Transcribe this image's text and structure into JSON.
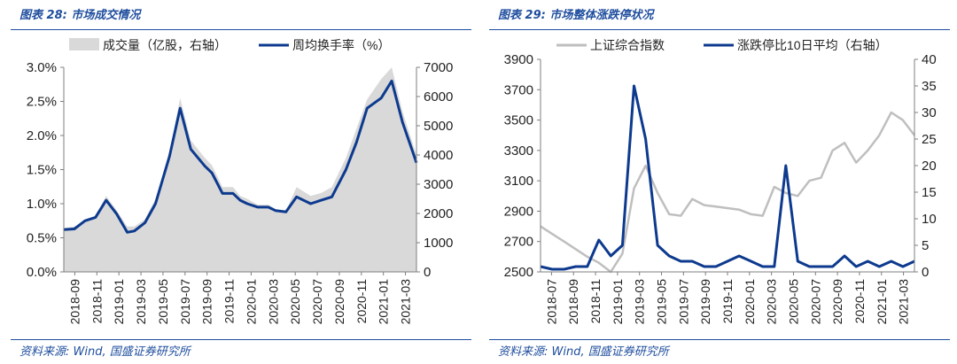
{
  "figures": [
    {
      "title": "图表 28:  市场成交情况",
      "source": "资料来源:  Wind,  国盛证券研究所"
    },
    {
      "title": "图表 29:  市场整体涨跌停状况",
      "source": "资料来源:  Wind,  国盛证券研究所"
    }
  ],
  "chart_data": [
    {
      "type": "area+line",
      "title": "市场成交情况",
      "x_tick_labels": [
        "2018-09",
        "2018-11",
        "2019-01",
        "2019-03",
        "2019-05",
        "2019-07",
        "2019-09",
        "2019-11",
        "2020-01",
        "2020-03",
        "2020-05",
        "2020-07",
        "2020-09",
        "2020-11",
        "2021-01",
        "2021-03"
      ],
      "x_range": [
        "2018-09",
        "2021-04"
      ],
      "y_left": {
        "range": [
          0,
          3.0
        ],
        "ticks": [
          "0.0%",
          "0.5%",
          "1.0%",
          "1.5%",
          "2.0%",
          "2.5%",
          "3.0%"
        ]
      },
      "y_right": {
        "range": [
          0,
          7000
        ],
        "ticks": [
          "0",
          "1000",
          "2000",
          "3000",
          "4000",
          "5000",
          "6000",
          "7000"
        ]
      },
      "grid": false,
      "legend_position": "top",
      "series": [
        {
          "name": "成交量（亿股，右轴）",
          "kind": "area",
          "axis": "right",
          "color": "#d9d9d9",
          "x": [
            0.0,
            0.03,
            0.06,
            0.09,
            0.12,
            0.15,
            0.18,
            0.2,
            0.23,
            0.26,
            0.3,
            0.33,
            0.36,
            0.4,
            0.42,
            0.45,
            0.48,
            0.5,
            0.52,
            0.55,
            0.58,
            0.6,
            0.63,
            0.66,
            0.7,
            0.73,
            0.76,
            0.8,
            0.83,
            0.86,
            0.9,
            0.93,
            0.96,
            1.0
          ],
          "values": [
            1500,
            1550,
            1700,
            1900,
            2600,
            2100,
            1550,
            1550,
            1800,
            2500,
            4100,
            5950,
            4500,
            3900,
            3650,
            2900,
            2900,
            2600,
            2500,
            2300,
            2300,
            2150,
            2100,
            2900,
            2600,
            2700,
            2900,
            3900,
            4900,
            5900,
            6600,
            7000,
            5500,
            4000
          ]
        },
        {
          "name": "周均换手率（%）",
          "kind": "line",
          "axis": "left",
          "color": "#0d3a8e",
          "x": [
            0.0,
            0.03,
            0.06,
            0.09,
            0.12,
            0.15,
            0.18,
            0.2,
            0.23,
            0.26,
            0.3,
            0.33,
            0.36,
            0.4,
            0.42,
            0.45,
            0.48,
            0.5,
            0.52,
            0.55,
            0.58,
            0.6,
            0.63,
            0.66,
            0.7,
            0.73,
            0.76,
            0.8,
            0.83,
            0.86,
            0.9,
            0.93,
            0.96,
            1.0
          ],
          "values": [
            0.62,
            0.63,
            0.75,
            0.8,
            1.05,
            0.85,
            0.58,
            0.6,
            0.72,
            1.0,
            1.7,
            2.4,
            1.8,
            1.55,
            1.45,
            1.15,
            1.15,
            1.05,
            1.0,
            0.95,
            0.95,
            0.9,
            0.88,
            1.1,
            1.0,
            1.05,
            1.1,
            1.5,
            1.9,
            2.4,
            2.55,
            2.8,
            2.2,
            1.6
          ]
        }
      ]
    },
    {
      "type": "line",
      "title": "市场整体涨跌停状况",
      "x_tick_labels": [
        "2018-07",
        "2018-09",
        "2018-11",
        "2019-01",
        "2019-03",
        "2019-05",
        "2019-07",
        "2019-09",
        "2019-11",
        "2020-01",
        "2020-03",
        "2020-05",
        "2020-07",
        "2020-09",
        "2020-11",
        "2021-01",
        "2021-03"
      ],
      "x_range": [
        "2018-07",
        "2021-04"
      ],
      "y_left": {
        "range": [
          2500,
          3900
        ],
        "ticks": [
          "2500",
          "2700",
          "2900",
          "3100",
          "3300",
          "3500",
          "3700",
          "3900"
        ]
      },
      "y_right": {
        "range": [
          0,
          40
        ],
        "ticks": [
          "0",
          "5",
          "10",
          "15",
          "20",
          "25",
          "30",
          "35",
          "40"
        ]
      },
      "grid": false,
      "legend_position": "top",
      "series": [
        {
          "name": "上证综合指数",
          "axis": "left",
          "color": "#bfbfbf",
          "x": [
            0.0,
            0.031,
            0.063,
            0.094,
            0.125,
            0.156,
            0.188,
            0.219,
            0.25,
            0.281,
            0.313,
            0.344,
            0.375,
            0.406,
            0.438,
            0.469,
            0.5,
            0.531,
            0.563,
            0.594,
            0.625,
            0.656,
            0.688,
            0.719,
            0.75,
            0.781,
            0.813,
            0.844,
            0.875,
            0.906,
            0.938,
            0.969,
            1.0
          ],
          "values": [
            2800,
            2750,
            2700,
            2650,
            2600,
            2560,
            2500,
            2620,
            3050,
            3200,
            3020,
            2880,
            2870,
            2980,
            2940,
            2930,
            2920,
            2910,
            2880,
            2870,
            3060,
            3020,
            3000,
            3100,
            3120,
            3300,
            3350,
            3220,
            3300,
            3400,
            3550,
            3500,
            3400
          ]
        },
        {
          "name": "涨跌停比10日平均（右轴）",
          "axis": "right",
          "color": "#0d3a8e",
          "x": [
            0.0,
            0.031,
            0.063,
            0.094,
            0.125,
            0.156,
            0.188,
            0.219,
            0.25,
            0.281,
            0.313,
            0.344,
            0.375,
            0.406,
            0.438,
            0.469,
            0.5,
            0.531,
            0.563,
            0.594,
            0.625,
            0.656,
            0.688,
            0.719,
            0.75,
            0.781,
            0.813,
            0.844,
            0.875,
            0.906,
            0.938,
            0.969,
            1.0
          ],
          "values": [
            1,
            0.5,
            0.5,
            1,
            1,
            6,
            3,
            5,
            35,
            25,
            5,
            3,
            2,
            2,
            1,
            1,
            2,
            3,
            2,
            1,
            1,
            20,
            2,
            1,
            1,
            1,
            3,
            1,
            2,
            1,
            2,
            1,
            2
          ]
        }
      ]
    }
  ]
}
